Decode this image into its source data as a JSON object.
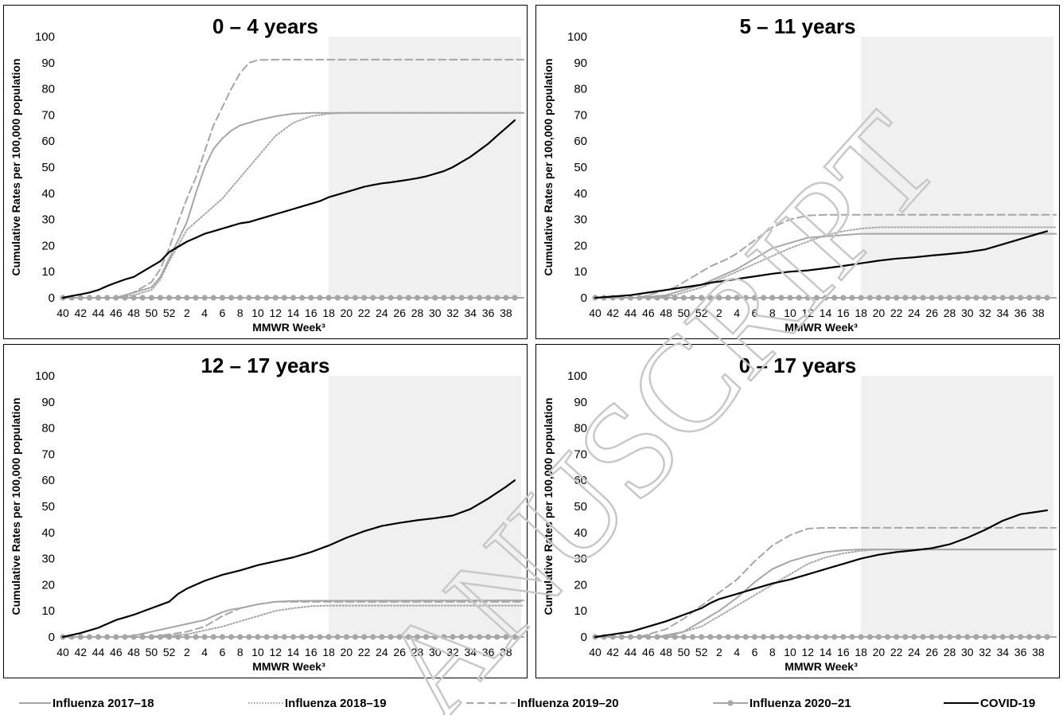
{
  "legend": {
    "items": [
      {
        "label": "Influenza 2017–18",
        "color": "#a6a6a6",
        "style": "solid",
        "series": "flu1718"
      },
      {
        "label": "Influenza 2018–19",
        "color": "#a6a6a6",
        "style": "dotted",
        "series": "flu1819"
      },
      {
        "label": "Influenza 2019–20",
        "color": "#a6a6a6",
        "style": "dashed",
        "series": "flu1920"
      },
      {
        "label": "Influenza 2020–21",
        "color": "#a6a6a6",
        "style": "markers",
        "series": "flu2021"
      },
      {
        "label": "COVID-19",
        "color": "#000000",
        "style": "solid",
        "series": "covid"
      }
    ]
  },
  "watermark": {
    "text": "ANUSCRIPT",
    "color": "#c8c8c8"
  },
  "chart_data": [
    {
      "type": "line",
      "title": "0 – 4 years",
      "ylabel": "Cumulative Rates per 100,000 population",
      "xlabel": "MMWR Week³",
      "ylim": [
        0,
        100
      ],
      "yticks": [
        0,
        10,
        20,
        30,
        40,
        50,
        60,
        70,
        80,
        90,
        100
      ],
      "xticks": [
        "40",
        "42",
        "44",
        "46",
        "48",
        "50",
        "52",
        "2",
        "4",
        "6",
        "8",
        "10",
        "12",
        "14",
        "16",
        "18",
        "20",
        "22",
        "24",
        "26",
        "28",
        "30",
        "32",
        "34",
        "36",
        "38"
      ],
      "shaded_region": {
        "from": "18",
        "to": "39"
      },
      "series": [
        {
          "name": "Influenza 2017–18",
          "key": "flu1718",
          "x": [
            0,
            6,
            8,
            10,
            11,
            12,
            13,
            14,
            15,
            16,
            17,
            18,
            19,
            20,
            22,
            24,
            26,
            28,
            30,
            32,
            34,
            36,
            38,
            40,
            52
          ],
          "values": [
            0,
            0,
            2,
            4,
            8,
            15,
            22,
            29,
            40,
            50,
            57,
            61,
            64,
            66,
            68,
            69.5,
            70.5,
            70.8,
            70.8,
            70.8,
            70.8,
            70.8,
            70.8,
            70.8,
            70.8
          ]
        },
        {
          "name": "Influenza 2018–19",
          "key": "flu1819",
          "x": [
            0,
            6,
            8,
            10,
            11,
            12,
            13,
            14,
            16,
            18,
            20,
            22,
            24,
            26,
            28,
            30,
            32,
            34,
            36,
            52
          ],
          "values": [
            0,
            0,
            1,
            3,
            7,
            14,
            20,
            26,
            32,
            38,
            46,
            54,
            62,
            67,
            69.5,
            70.5,
            70.8,
            70.8,
            70.8,
            70.8
          ]
        },
        {
          "name": "Influenza 2019–20",
          "key": "flu1920",
          "x": [
            0,
            6,
            8,
            10,
            11,
            12,
            13,
            14,
            15,
            16,
            17,
            18,
            19,
            20,
            21,
            22,
            24,
            52
          ],
          "values": [
            0,
            0,
            2,
            6,
            11,
            19,
            29,
            38,
            46,
            56,
            66,
            73,
            80,
            86,
            90,
            91,
            91.2,
            91.2
          ]
        },
        {
          "name": "Influenza 2020–21",
          "key": "flu2021",
          "x": [
            0,
            52
          ],
          "values": [
            0,
            0
          ]
        },
        {
          "name": "COVID-19",
          "key": "covid",
          "x": [
            0,
            1,
            2,
            3,
            4,
            5,
            6,
            7,
            8,
            9,
            10,
            11,
            12,
            13,
            14,
            15,
            16,
            17,
            18,
            19,
            20,
            21,
            22,
            23,
            24,
            25,
            26,
            27,
            28,
            29,
            30,
            31,
            32,
            33,
            34,
            35,
            36,
            37,
            38,
            39,
            40,
            41,
            42,
            43,
            44,
            45,
            46,
            47,
            48,
            49,
            50,
            51
          ],
          "values": [
            0,
            0.7,
            1.3,
            2,
            3,
            4.5,
            5.8,
            7,
            8,
            10,
            12,
            14,
            17.5,
            19.5,
            21.5,
            23,
            24.5,
            25.5,
            26.5,
            27.5,
            28.5,
            29,
            30,
            31,
            32,
            33,
            34,
            35,
            36,
            37,
            38.5,
            39.5,
            40.5,
            41.5,
            42.5,
            43.2,
            43.8,
            44.2,
            44.7,
            45.2,
            45.8,
            46.5,
            47.5,
            48.5,
            50,
            52,
            54,
            56.5,
            59,
            62,
            65,
            68
          ]
        }
      ]
    },
    {
      "type": "line",
      "title": "5 – 11 years",
      "ylabel": "Cumulative Rates per 100,000 population",
      "xlabel": "MMWR Week³",
      "ylim": [
        0,
        100
      ],
      "yticks": [
        0,
        10,
        20,
        30,
        40,
        50,
        60,
        70,
        80,
        90,
        100
      ],
      "xticks": [
        "40",
        "42",
        "44",
        "46",
        "48",
        "50",
        "52",
        "2",
        "4",
        "6",
        "8",
        "10",
        "12",
        "14",
        "16",
        "18",
        "20",
        "22",
        "24",
        "26",
        "28",
        "30",
        "32",
        "34",
        "36",
        "38"
      ],
      "shaded_region": {
        "from": "18",
        "to": "39"
      },
      "series": [
        {
          "name": "Influenza 2017–18",
          "key": "flu1718",
          "x": [
            0,
            5,
            8,
            10,
            12,
            14,
            16,
            18,
            20,
            22,
            24,
            26,
            28,
            30,
            32,
            52
          ],
          "values": [
            0,
            0,
            1,
            3,
            5,
            8,
            11,
            15,
            19,
            21,
            23,
            23.5,
            24,
            24.5,
            24.5,
            24.5
          ]
        },
        {
          "name": "Influenza 2018–19",
          "key": "flu1819",
          "x": [
            0,
            6,
            9,
            12,
            14,
            16,
            18,
            20,
            22,
            24,
            26,
            28,
            30,
            32,
            34,
            52
          ],
          "values": [
            0,
            0,
            1,
            4,
            7,
            10,
            13,
            16,
            19,
            21.5,
            24,
            25.5,
            26.5,
            27,
            27,
            27
          ]
        },
        {
          "name": "Influenza 2019–20",
          "key": "flu1920",
          "x": [
            0,
            5,
            7,
            9,
            11,
            13,
            15,
            16,
            18,
            20,
            22,
            24,
            26,
            52
          ],
          "values": [
            0,
            0,
            2,
            4,
            8,
            12,
            15,
            17,
            22,
            27,
            30,
            31.5,
            31.8,
            31.8
          ]
        },
        {
          "name": "Influenza 2020–21",
          "key": "flu2021",
          "x": [
            0,
            52
          ],
          "values": [
            0,
            0
          ]
        },
        {
          "name": "COVID-19",
          "key": "covid",
          "x": [
            0,
            2,
            4,
            6,
            8,
            10,
            12,
            13,
            14,
            16,
            18,
            20,
            22,
            24,
            26,
            28,
            30,
            32,
            34,
            36,
            38,
            40,
            42,
            44,
            46,
            48,
            50,
            51
          ],
          "values": [
            0,
            0.5,
            1,
            2,
            3,
            4,
            5,
            5.8,
            6.2,
            7.2,
            8.2,
            9.2,
            10,
            10.5,
            11.3,
            12.2,
            13.2,
            14.2,
            15,
            15.5,
            16.2,
            16.8,
            17.5,
            18.5,
            20.5,
            22.5,
            24.5,
            25.5
          ]
        }
      ]
    },
    {
      "type": "line",
      "title": "12 – 17 years",
      "ylabel": "Cumulative Rates per 100,000 population",
      "xlabel": "MMWR Week³",
      "ylim": [
        0,
        100
      ],
      "yticks": [
        0,
        10,
        20,
        30,
        40,
        50,
        60,
        70,
        80,
        90,
        100
      ],
      "xticks": [
        "40",
        "42",
        "44",
        "46",
        "48",
        "50",
        "52",
        "2",
        "4",
        "6",
        "8",
        "10",
        "12",
        "14",
        "16",
        "18",
        "20",
        "22",
        "24",
        "26",
        "28",
        "30",
        "32",
        "34",
        "36",
        "38"
      ],
      "shaded_region": {
        "from": "18",
        "to": "39"
      },
      "series": [
        {
          "name": "Influenza 2017–18",
          "key": "flu1718",
          "x": [
            0,
            6,
            8,
            10,
            12,
            14,
            16,
            18,
            19,
            20,
            22,
            24,
            26,
            52
          ],
          "values": [
            0,
            0,
            0.5,
            2,
            3.5,
            5,
            6.5,
            9.5,
            10.5,
            11,
            12.5,
            13.5,
            13.8,
            14
          ]
        },
        {
          "name": "Influenza 2018–19",
          "key": "flu1819",
          "x": [
            0,
            10,
            14,
            16,
            18,
            20,
            22,
            24,
            26,
            28,
            30,
            32,
            52
          ],
          "values": [
            0,
            0,
            1,
            2.5,
            4,
            6,
            8,
            10,
            11,
            11.8,
            12,
            12,
            12
          ]
        },
        {
          "name": "Influenza 2019–20",
          "key": "flu1920",
          "x": [
            0,
            10,
            14,
            16,
            18,
            20,
            22,
            24,
            52
          ],
          "values": [
            0,
            0,
            2,
            4,
            8,
            11,
            12.5,
            13.5,
            13.5
          ]
        },
        {
          "name": "Influenza 2020–21",
          "key": "flu2021",
          "x": [
            0,
            52
          ],
          "values": [
            0,
            0
          ]
        },
        {
          "name": "COVID-19",
          "key": "covid",
          "x": [
            0,
            2,
            4,
            6,
            7,
            8,
            10,
            12,
            13,
            14,
            16,
            18,
            20,
            22,
            24,
            26,
            28,
            30,
            32,
            34,
            36,
            38,
            40,
            42,
            44,
            46,
            48,
            50,
            51
          ],
          "values": [
            0,
            1.5,
            3.5,
            6.5,
            7.5,
            8.5,
            11,
            13.5,
            16.5,
            18.5,
            21.5,
            23.8,
            25.5,
            27.5,
            29,
            30.5,
            32.5,
            35,
            38,
            40.5,
            42.5,
            43.7,
            44.7,
            45.5,
            46.5,
            49,
            53,
            57.5,
            60
          ]
        }
      ]
    },
    {
      "type": "line",
      "title": "0 – 17 years",
      "ylabel": "Cumulative Rates per 100,000 population",
      "xlabel": "MMWR Week³",
      "ylim": [
        0,
        100
      ],
      "yticks": [
        0,
        10,
        20,
        30,
        40,
        50,
        60,
        70,
        80,
        90,
        100
      ],
      "xticks": [
        "40",
        "42",
        "44",
        "46",
        "48",
        "50",
        "52",
        "2",
        "4",
        "6",
        "8",
        "10",
        "12",
        "14",
        "16",
        "18",
        "20",
        "22",
        "24",
        "26",
        "28",
        "30",
        "32",
        "34",
        "36",
        "38"
      ],
      "shaded_region": {
        "from": "18",
        "to": "39"
      },
      "series": [
        {
          "name": "Influenza 2017–18",
          "key": "flu1718",
          "x": [
            0,
            7,
            10,
            12,
            14,
            16,
            18,
            20,
            22,
            24,
            26,
            28,
            30,
            52
          ],
          "values": [
            0,
            0,
            2,
            6,
            10,
            15,
            21,
            26,
            29,
            31,
            32.5,
            33.2,
            33.5,
            33.5
          ]
        },
        {
          "name": "Influenza 2018–19",
          "key": "flu1819",
          "x": [
            0,
            8,
            12,
            14,
            16,
            18,
            20,
            22,
            24,
            26,
            28,
            30,
            32,
            34,
            52
          ],
          "values": [
            0,
            0,
            4,
            8,
            12,
            16,
            20,
            24,
            28,
            30.5,
            32,
            33,
            33.5,
            33.5,
            33.5
          ]
        },
        {
          "name": "Influenza 2019–20",
          "key": "flu1920",
          "x": [
            0,
            5,
            8,
            10,
            12,
            14,
            16,
            18,
            20,
            22,
            24,
            26,
            52
          ],
          "values": [
            0,
            0,
            3,
            7,
            12,
            17,
            22,
            29,
            35,
            39,
            41.5,
            41.8,
            41.8
          ]
        },
        {
          "name": "Influenza 2020–21",
          "key": "flu2021",
          "x": [
            0,
            52
          ],
          "values": [
            0,
            0
          ]
        },
        {
          "name": "COVID-19",
          "key": "covid",
          "x": [
            0,
            2,
            4,
            6,
            8,
            10,
            12,
            13,
            14,
            16,
            18,
            20,
            22,
            24,
            26,
            28,
            30,
            32,
            34,
            36,
            38,
            40,
            42,
            44,
            46,
            48,
            50,
            51
          ],
          "values": [
            0,
            1,
            2,
            4,
            6,
            8.5,
            11,
            13,
            14.5,
            16.5,
            18.5,
            20.5,
            22,
            24,
            26,
            28,
            30,
            31.5,
            32.5,
            33.2,
            34,
            35.5,
            38,
            41,
            44.5,
            47,
            48,
            48.5
          ]
        }
      ]
    }
  ]
}
